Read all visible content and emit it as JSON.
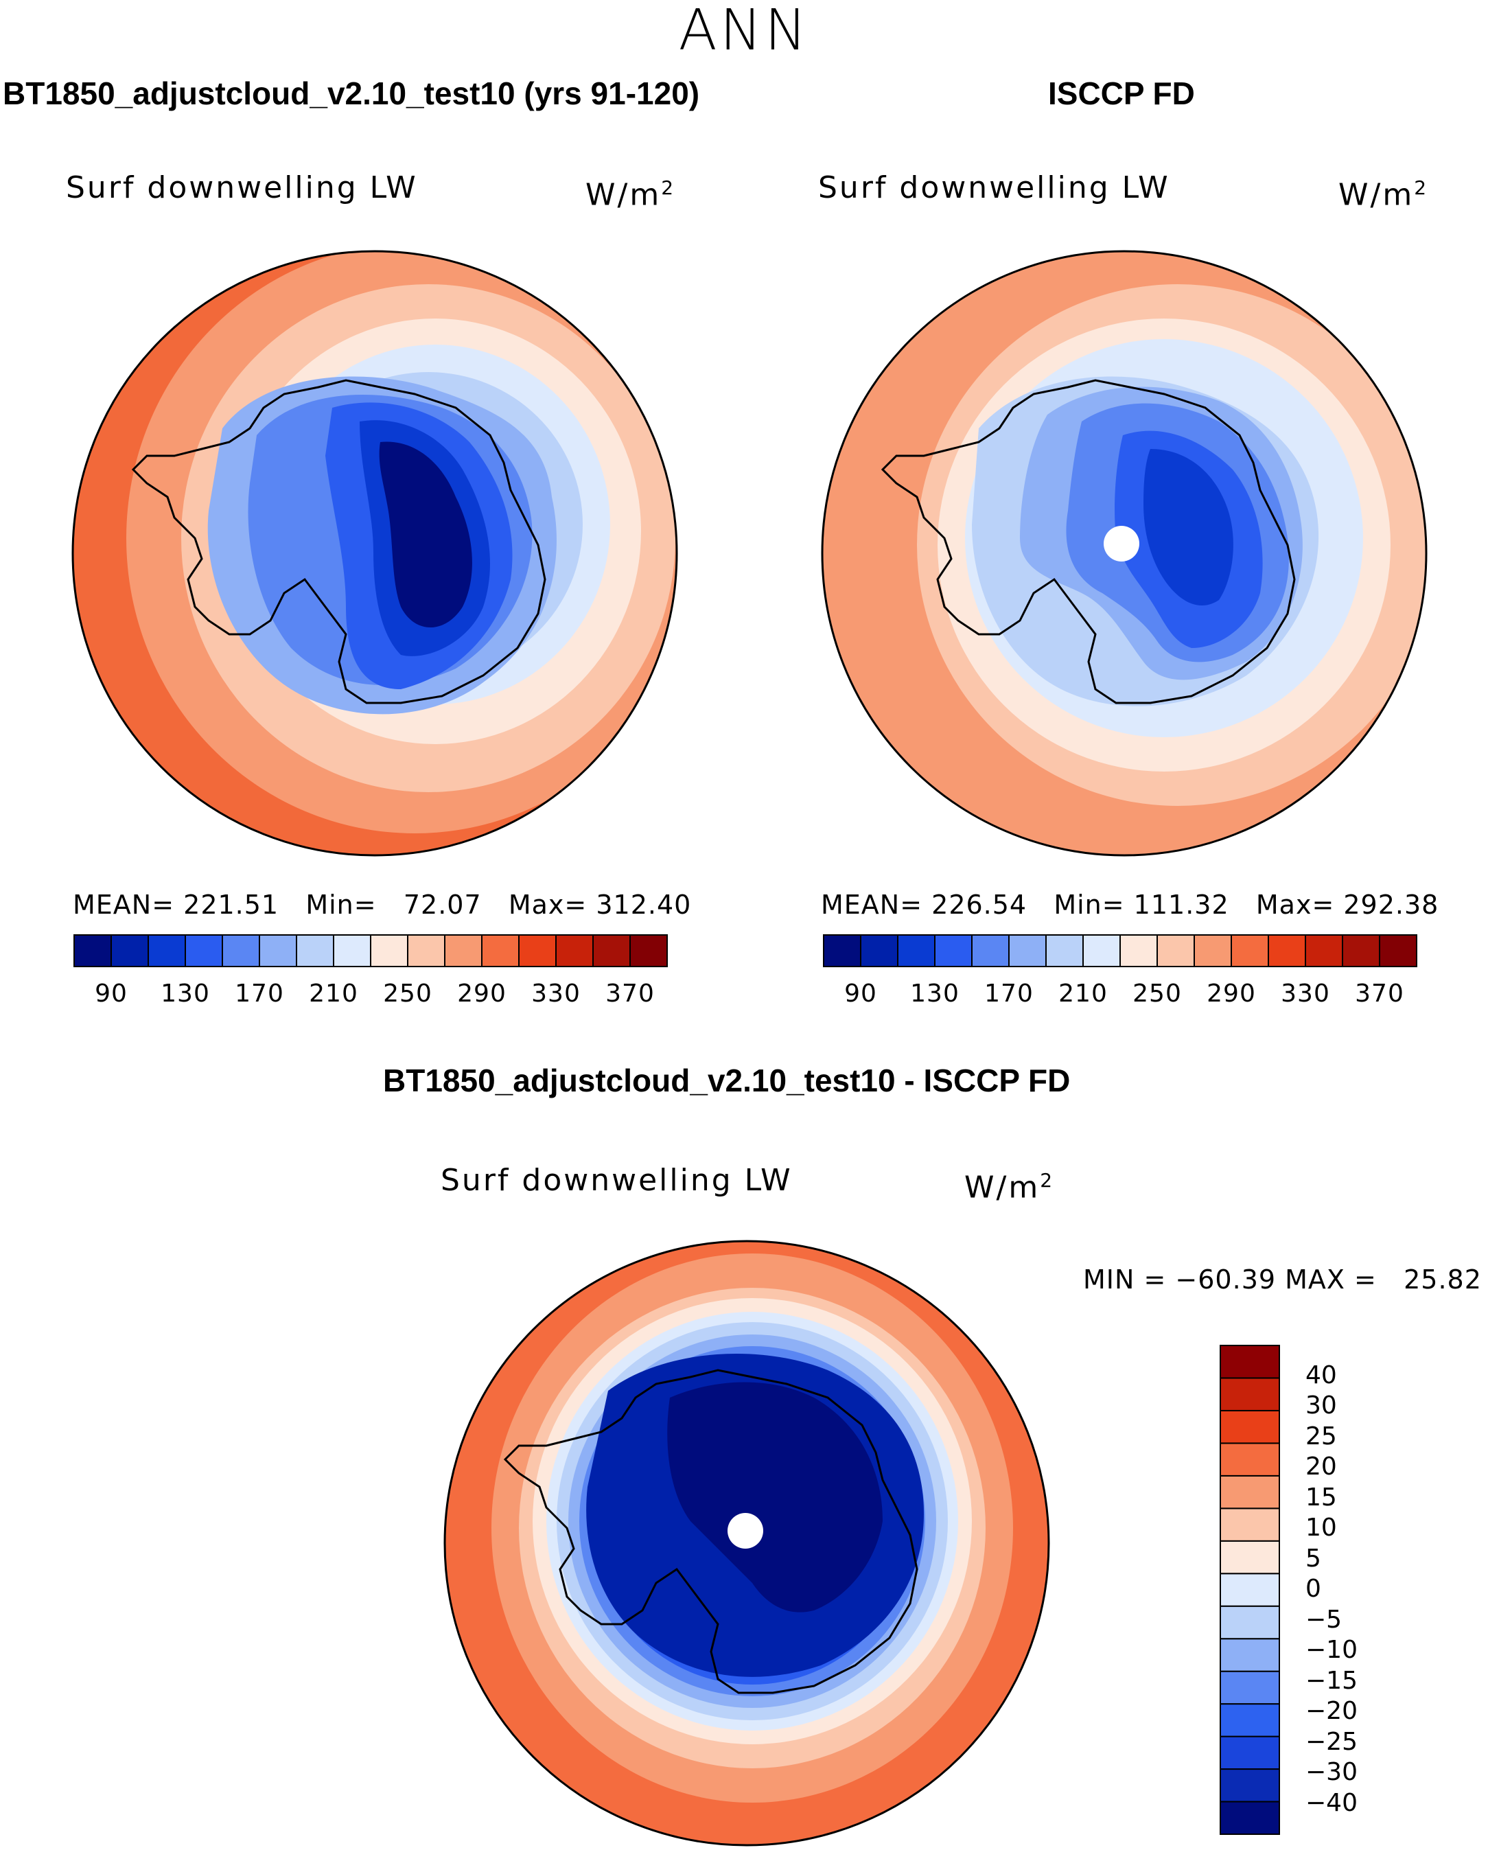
{
  "season": "ANN",
  "panels": {
    "test": {
      "title": "BT1850_adjustcloud_v2.10_test10 (yrs 91-120)",
      "variable": "Surf downwelling LW",
      "units": "W/m",
      "units_sup": "2",
      "stats": "MEAN= 221.51   Min=   72.07   Max= 312.40"
    },
    "obs": {
      "title": "ISCCP FD",
      "variable": "Surf downwelling LW",
      "units": "W/m",
      "units_sup": "2",
      "stats": "MEAN= 226.54   Min= 111.32   Max= 292.38"
    },
    "diff": {
      "title": "BT1850_adjustcloud_v2.10_test10 - ISCCP FD",
      "variable": "Surf downwelling LW",
      "units": "W/m",
      "units_sup": "2",
      "stats": "MIN = −60.39 MAX =   25.82"
    }
  },
  "colorbar_main": {
    "colors": [
      "#000c7d",
      "#0021aa",
      "#0a3bd2",
      "#2a5cf0",
      "#5a86f3",
      "#8eb0f6",
      "#bad2f9",
      "#ddeafd",
      "#fde8dc",
      "#fbc6ab",
      "#f79a72",
      "#f46c3f",
      "#e94018",
      "#c8220a",
      "#a51107",
      "#820004"
    ],
    "tick_labels": [
      "90",
      "130",
      "170",
      "210",
      "250",
      "290",
      "330",
      "370"
    ]
  },
  "colorbar_diff": {
    "colors": [
      "#000c7d",
      "#0a2bb4",
      "#1a45dc",
      "#2d62f0",
      "#5a86f3",
      "#8eb0f6",
      "#bad2f9",
      "#ddeafd",
      "#fde8dc",
      "#fbc6ab",
      "#f79a72",
      "#f46c3f",
      "#e94018",
      "#c8220a",
      "#8e0003"
    ],
    "tick_labels": [
      "−40",
      "−30",
      "−25",
      "−20",
      "−15",
      "−10",
      "−5",
      "0",
      "5",
      "10",
      "15",
      "20",
      "25",
      "30",
      "40"
    ]
  },
  "map_colors": {
    "ocean_hot": "#f2693a",
    "ocean_warm": "#f79a72",
    "ocean_mild": "#fbc6ab",
    "ocean_neutral": "#fde8dc",
    "ice_light": "#ddeafd",
    "ice_pale": "#bad2f9",
    "ice_mid": "#8eb0f6",
    "ice_blue": "#5a86f3",
    "ice_deep": "#2a5cf0",
    "ice_dark": "#0a3bd2",
    "ice_darker": "#0021aa",
    "ice_darkest": "#000c7d"
  }
}
